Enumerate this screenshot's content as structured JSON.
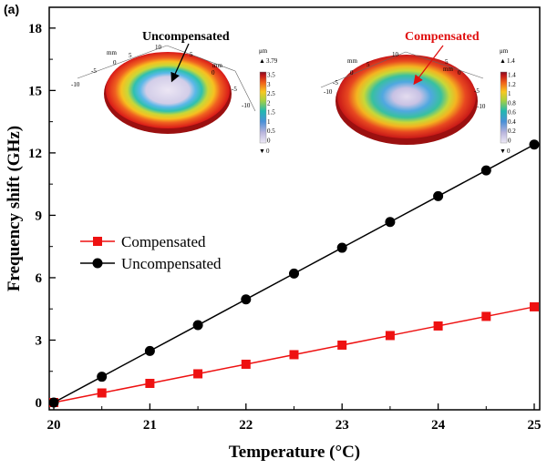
{
  "panel_label": "(a)",
  "colors": {
    "compensated": "#ee1111",
    "uncompensated": "#000000",
    "annotation_uncomp": "#000000",
    "annotation_comp": "#e01010"
  },
  "insets": [
    {
      "title": "Uncompensated",
      "unit": "μm",
      "max_label": "3.79",
      "min_label": "0",
      "colorbar_ticks": [
        "3.5",
        "3",
        "2.5",
        "2",
        "1.5",
        "1",
        "0.5",
        "0"
      ],
      "axis_unit": "mm",
      "axis_ticks": [
        "10",
        "5",
        "0",
        "-5",
        "-10"
      ],
      "axis_ticks_y": [
        "5",
        "0",
        "-5",
        "-10"
      ]
    },
    {
      "title": "Compensated",
      "unit": "μm",
      "max_label": "1.4",
      "min_label": "0",
      "colorbar_ticks": [
        "1.4",
        "1.2",
        "1",
        "0.8",
        "0.6",
        "0.4",
        "0.2",
        "0"
      ],
      "axis_unit": "mm",
      "axis_ticks": [
        "10",
        "5",
        "0",
        "-5",
        "-10"
      ],
      "axis_ticks_y": [
        "5",
        "0",
        "-5",
        "-10"
      ]
    }
  ],
  "chart_data": {
    "type": "line",
    "title": "",
    "xlabel": "Temperature (°C)",
    "ylabel": "Frequency shift (GHz)",
    "xlim": [
      20,
      25
    ],
    "ylim": [
      0,
      19
    ],
    "x_ticks": [
      20,
      21,
      22,
      23,
      24,
      25
    ],
    "x_minor_ticks": [
      20.5,
      21.5,
      22.5,
      23.5,
      24.5
    ],
    "y_ticks": [
      0,
      3,
      6,
      9,
      12,
      15,
      18
    ],
    "legend_position": "middle-left",
    "grid": false,
    "x": [
      20,
      20.5,
      21,
      21.5,
      22,
      22.5,
      23,
      23.5,
      24,
      24.5,
      25
    ],
    "series": [
      {
        "name": "Compensated",
        "marker": "square",
        "values": [
          0,
          0.46,
          0.92,
          1.38,
          1.84,
          2.3,
          2.76,
          3.22,
          3.68,
          4.14,
          4.6
        ]
      },
      {
        "name": "Uncompensated",
        "marker": "circle",
        "values": [
          0,
          1.24,
          2.48,
          3.72,
          4.96,
          6.2,
          7.44,
          8.68,
          9.92,
          11.16,
          12.4
        ]
      }
    ]
  }
}
